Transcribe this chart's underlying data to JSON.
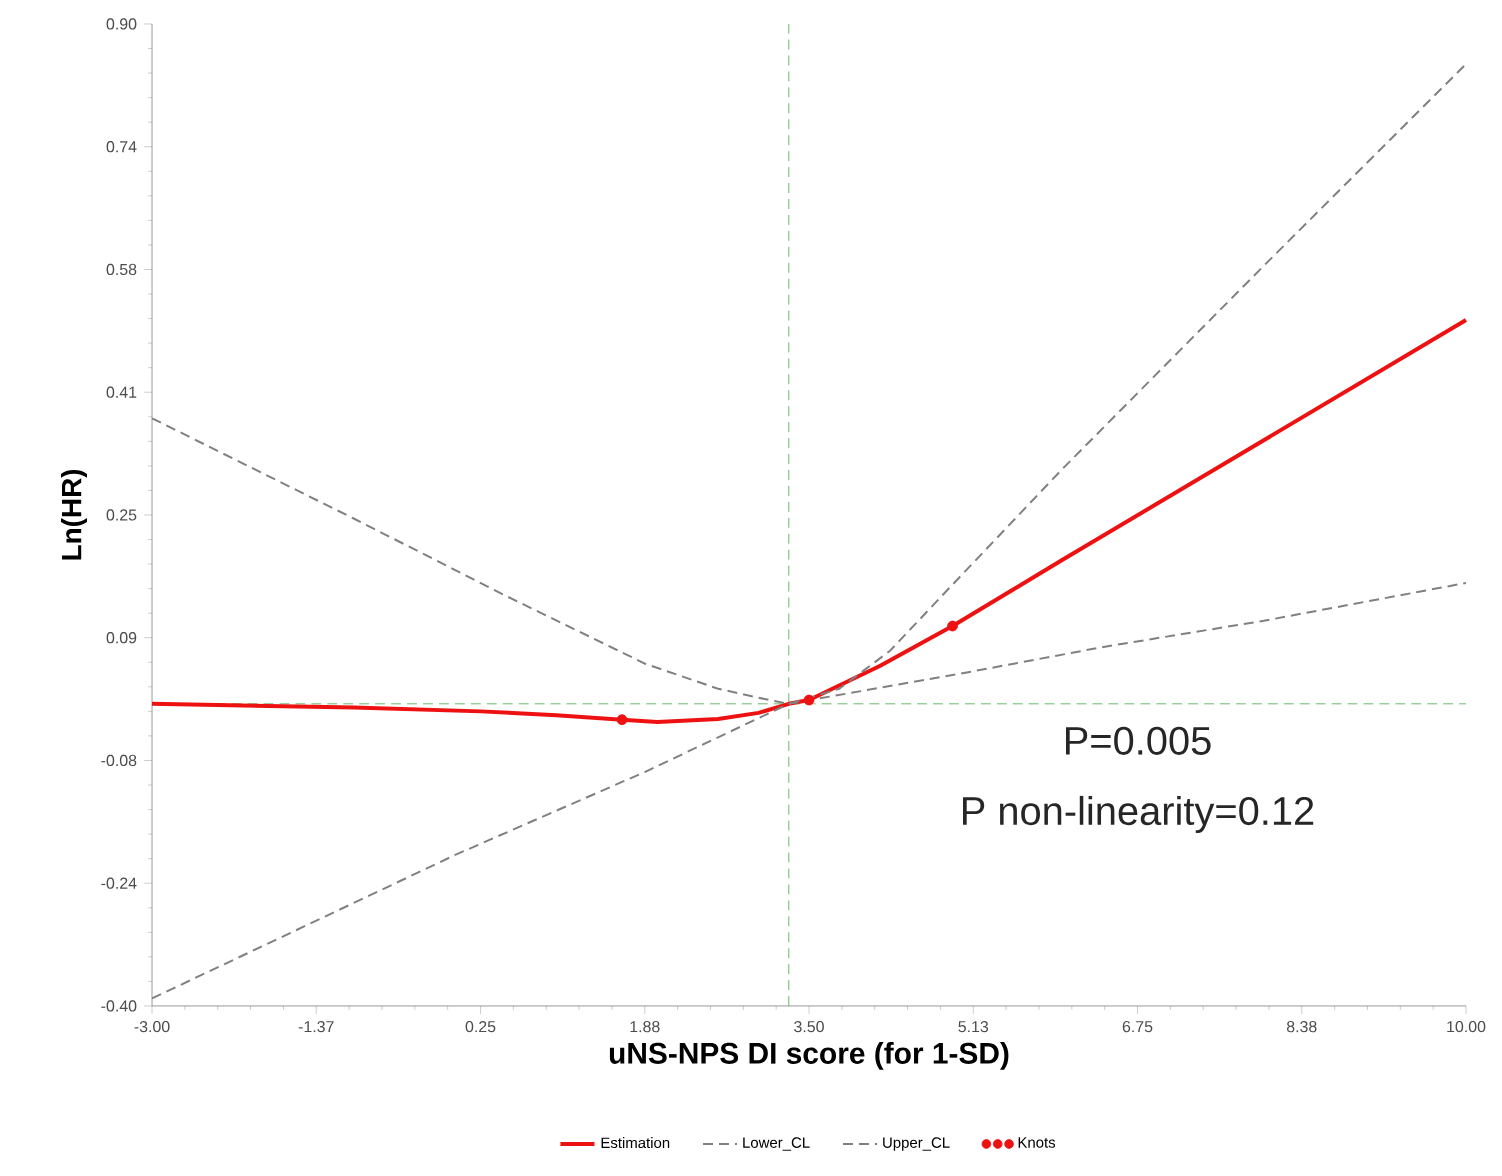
{
  "chart_data": {
    "type": "line",
    "xlabel": "uNS-NPS DI score (for 1-SD)",
    "ylabel": "Ln(HR)",
    "xlim": [
      -3.0,
      10.0
    ],
    "ylim": [
      -0.4,
      0.9
    ],
    "xticks": [
      {
        "value": -3.0,
        "label": "-3.00"
      },
      {
        "value": -1.375,
        "label": "-1.37"
      },
      {
        "value": 0.25,
        "label": "0.25"
      },
      {
        "value": 1.875,
        "label": "1.88"
      },
      {
        "value": 3.5,
        "label": "3.50"
      },
      {
        "value": 5.125,
        "label": "5.13"
      },
      {
        "value": 6.75,
        "label": "6.75"
      },
      {
        "value": 8.375,
        "label": "8.38"
      },
      {
        "value": 10.0,
        "label": "10.00"
      }
    ],
    "yticks": [
      {
        "value": -0.4,
        "label": "-0.40"
      },
      {
        "value": -0.2375,
        "label": "-0.24"
      },
      {
        "value": -0.075,
        "label": "-0.08"
      },
      {
        "value": 0.0875,
        "label": "0.09"
      },
      {
        "value": 0.25,
        "label": "0.25"
      },
      {
        "value": 0.4125,
        "label": "0.41"
      },
      {
        "value": 0.575,
        "label": "0.58"
      },
      {
        "value": 0.7375,
        "label": "0.74"
      },
      {
        "value": 0.9,
        "label": "0.90"
      }
    ],
    "series": [
      {
        "name": "Estimation",
        "line_style": "solid",
        "color": "#ee1111",
        "x": [
          -3.0,
          -1.0,
          0.25,
          1.0,
          1.65,
          2.0,
          2.6,
          3.0,
          3.3,
          3.5,
          4.2,
          4.92,
          6.0,
          8.0,
          10.0
        ],
        "values": [
          0.0,
          -0.005,
          -0.01,
          -0.015,
          -0.021,
          -0.024,
          -0.02,
          -0.012,
          0.0,
          0.005,
          0.05,
          0.103,
          0.19,
          0.349,
          0.508
        ]
      },
      {
        "name": "Lower_CL",
        "line_style": "dashed",
        "color": "#808080",
        "x": [
          -3.0,
          0.0,
          1.88,
          3.3,
          5.0,
          6.4,
          8.0,
          10.0
        ],
        "values": [
          -0.39,
          -0.2,
          -0.09,
          0.0,
          0.04,
          0.075,
          0.11,
          0.16
        ]
      },
      {
        "name": "Upper_CL",
        "line_style": "dashed",
        "color": "#808080",
        "x": [
          -3.0,
          -1.0,
          0.5,
          1.88,
          2.6,
          3.0,
          3.3,
          3.8,
          4.3,
          4.9,
          6.0,
          8.0,
          10.0
        ],
        "values": [
          0.378,
          0.245,
          0.143,
          0.053,
          0.02,
          0.008,
          0.0,
          0.02,
          0.07,
          0.155,
          0.31,
          0.58,
          0.847
        ]
      },
      {
        "name": "Knots",
        "type": "scatter",
        "marker": "circle",
        "color": "#ee1111",
        "x": [
          1.65,
          3.5,
          4.92
        ],
        "values": [
          -0.021,
          0.005,
          0.103
        ]
      }
    ],
    "ref_lines": [
      {
        "axis": "x",
        "value": 3.3,
        "color": "#44aa44",
        "line_style": "dashed"
      },
      {
        "axis": "y",
        "value": 0.0,
        "color": "#44aa44",
        "line_style": "dashed"
      }
    ],
    "annotations": [
      "P=0.005",
      "P non-linearity=0.12"
    ],
    "legend": "bottom",
    "grid": false
  }
}
